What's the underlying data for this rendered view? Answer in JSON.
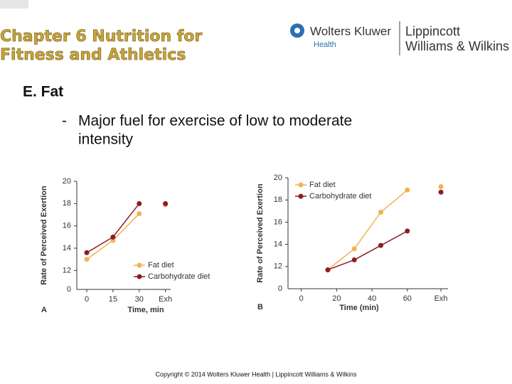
{
  "header": {
    "title_lines": [
      "Chapter 6 Nutrition for",
      "Fitness and Athletics"
    ],
    "logo": {
      "brand": "Wolters Kluwer",
      "division": "Health",
      "imprint_lines": [
        "Lippincott",
        "Williams & Wilkins"
      ]
    }
  },
  "body": {
    "heading": "E.  Fat",
    "bullet_marker": "-",
    "bullet": [
      "Major fuel for exercise of low to moderate",
      "intensity"
    ]
  },
  "footer": "Copyright © 2014 Wolters Kluwer Health | Lippincott Williams & Wilkins",
  "chart_data": [
    {
      "type": "line",
      "panel_label": "A",
      "xlabel": "Time, min",
      "ylabel": "Rate of Perceived Exertion",
      "legend": "lower right",
      "xlim": [
        -5.7,
        48
      ],
      "xticks": [
        0,
        15,
        30,
        {
          "value": 45,
          "label": "Exh"
        }
      ],
      "ylim": [
        10.3,
        20
      ],
      "yticks": [
        12,
        14,
        16,
        18,
        20
      ],
      "y_break_label": "0",
      "x": [
        0,
        15,
        30,
        null,
        45
      ],
      "series": [
        {
          "name": "Fat diet",
          "color": "#f2b24e",
          "values": [
            13.0,
            14.7,
            17.1,
            null,
            17.9
          ]
        },
        {
          "name": "Carbohydrate diet",
          "color": "#8c1c22",
          "values": [
            13.6,
            15.0,
            18.0,
            null,
            18.0
          ]
        }
      ]
    },
    {
      "type": "line",
      "panel_label": "B",
      "xlabel": "Time (min)",
      "ylabel": "Rate of Perceived Exertion",
      "legend": "upper left",
      "xlim": [
        -7.5,
        83
      ],
      "xticks": [
        0,
        20,
        40,
        60,
        {
          "value": 79,
          "label": "Exh"
        }
      ],
      "ylim": [
        10,
        20
      ],
      "yticks": [
        12,
        14,
        16,
        18,
        20
      ],
      "y_break_label": "0",
      "x": [
        15,
        30,
        45,
        60,
        null,
        79
      ],
      "series": [
        {
          "name": "Fat diet",
          "color": "#f2b24e",
          "values": [
            11.7,
            13.6,
            16.9,
            18.9,
            null,
            19.2
          ]
        },
        {
          "name": "Carbohydrate diet",
          "color": "#8c1c22",
          "values": [
            11.7,
            12.6,
            13.9,
            15.2,
            null,
            18.7
          ]
        }
      ]
    }
  ]
}
